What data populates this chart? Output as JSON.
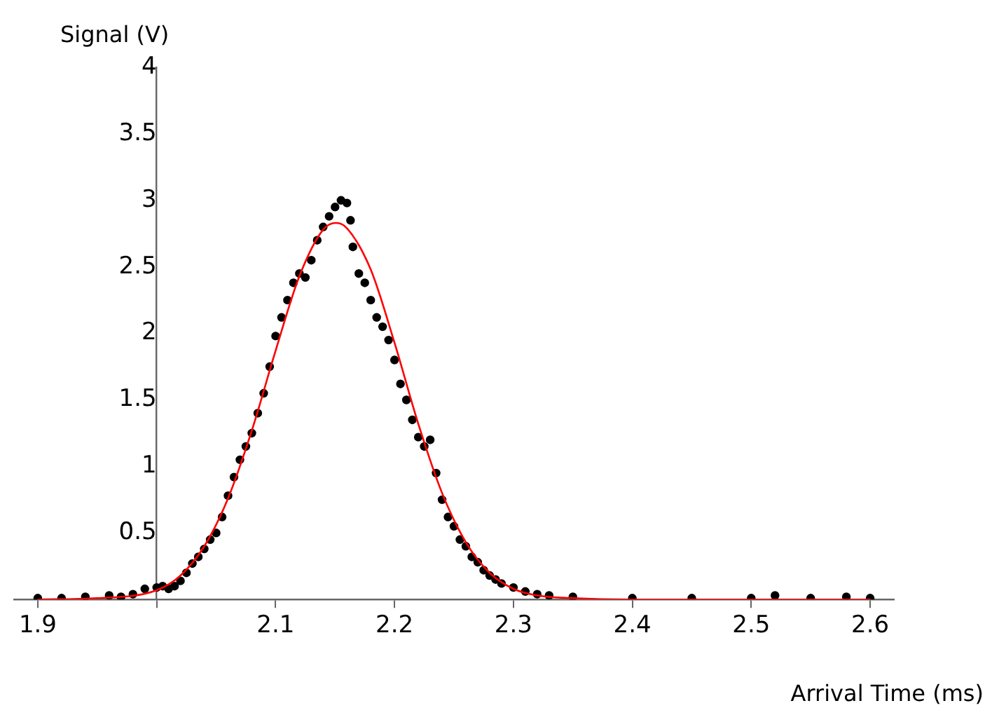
{
  "chart_data": {
    "type": "scatter",
    "xlabel": "Arrival Time (ms)",
    "ylabel": "Signal (V)",
    "xlim": [
      1.88,
      2.62
    ],
    "ylim": [
      0,
      4
    ],
    "xticks": [
      1.9,
      {
        "value": 2.0,
        "label": null
      },
      2.1,
      2.2,
      2.3,
      2.4,
      2.5,
      2.6
    ],
    "yticks": [
      0.5,
      1,
      1.5,
      2,
      2.5,
      3,
      3.5,
      4
    ],
    "series": [
      {
        "type": "scatter",
        "marker": "circle",
        "color": "#000000",
        "x": [
          1.9,
          1.92,
          1.94,
          1.96,
          1.97,
          1.98,
          1.99,
          2.0,
          2.005,
          2.01,
          2.015,
          2.02,
          2.025,
          2.03,
          2.035,
          2.04,
          2.045,
          2.05,
          2.055,
          2.06,
          2.065,
          2.07,
          2.075,
          2.08,
          2.085,
          2.09,
          2.095,
          2.1,
          2.105,
          2.11,
          2.115,
          2.12,
          2.125,
          2.13,
          2.135,
          2.14,
          2.145,
          2.15,
          2.155,
          2.16,
          2.163,
          2.165,
          2.17,
          2.175,
          2.18,
          2.185,
          2.19,
          2.195,
          2.2,
          2.205,
          2.21,
          2.215,
          2.22,
          2.225,
          2.23,
          2.235,
          2.24,
          2.245,
          2.25,
          2.255,
          2.26,
          2.265,
          2.27,
          2.275,
          2.28,
          2.285,
          2.29,
          2.3,
          2.31,
          2.32,
          2.33,
          2.35,
          2.4,
          2.45,
          2.5,
          2.52,
          2.55,
          2.58,
          2.6
        ],
        "values": [
          0.01,
          0.01,
          0.02,
          0.03,
          0.02,
          0.04,
          0.08,
          0.09,
          0.1,
          0.08,
          0.1,
          0.14,
          0.2,
          0.27,
          0.32,
          0.38,
          0.45,
          0.5,
          0.62,
          0.78,
          0.92,
          1.05,
          1.15,
          1.25,
          1.4,
          1.55,
          1.75,
          1.98,
          2.12,
          2.25,
          2.38,
          2.45,
          2.42,
          2.55,
          2.7,
          2.8,
          2.88,
          2.95,
          3.0,
          2.98,
          2.85,
          2.65,
          2.45,
          2.38,
          2.25,
          2.12,
          2.05,
          1.95,
          1.8,
          1.62,
          1.5,
          1.35,
          1.22,
          1.15,
          1.2,
          0.95,
          0.75,
          0.62,
          0.55,
          0.45,
          0.4,
          0.32,
          0.28,
          0.22,
          0.18,
          0.15,
          0.12,
          0.09,
          0.06,
          0.04,
          0.03,
          0.02,
          0.01,
          0.01,
          0.01,
          0.03,
          0.01,
          0.02,
          0.01
        ]
      },
      {
        "type": "line",
        "marker": "none",
        "color": "#ff0000",
        "x": [
          1.9,
          1.95,
          2.0,
          2.02,
          2.04,
          2.06,
          2.08,
          2.1,
          2.12,
          2.14,
          2.151,
          2.16,
          2.18,
          2.2,
          2.22,
          2.24,
          2.26,
          2.28,
          2.3,
          2.32,
          2.35,
          2.4,
          2.5,
          2.6
        ],
        "values": [
          0,
          0.01,
          0.07,
          0.18,
          0.4,
          0.76,
          1.27,
          1.87,
          2.43,
          2.78,
          2.83,
          2.79,
          2.48,
          1.93,
          1.32,
          0.8,
          0.43,
          0.2,
          0.08,
          0.03,
          0.01,
          0,
          0,
          0
        ]
      }
    ]
  }
}
